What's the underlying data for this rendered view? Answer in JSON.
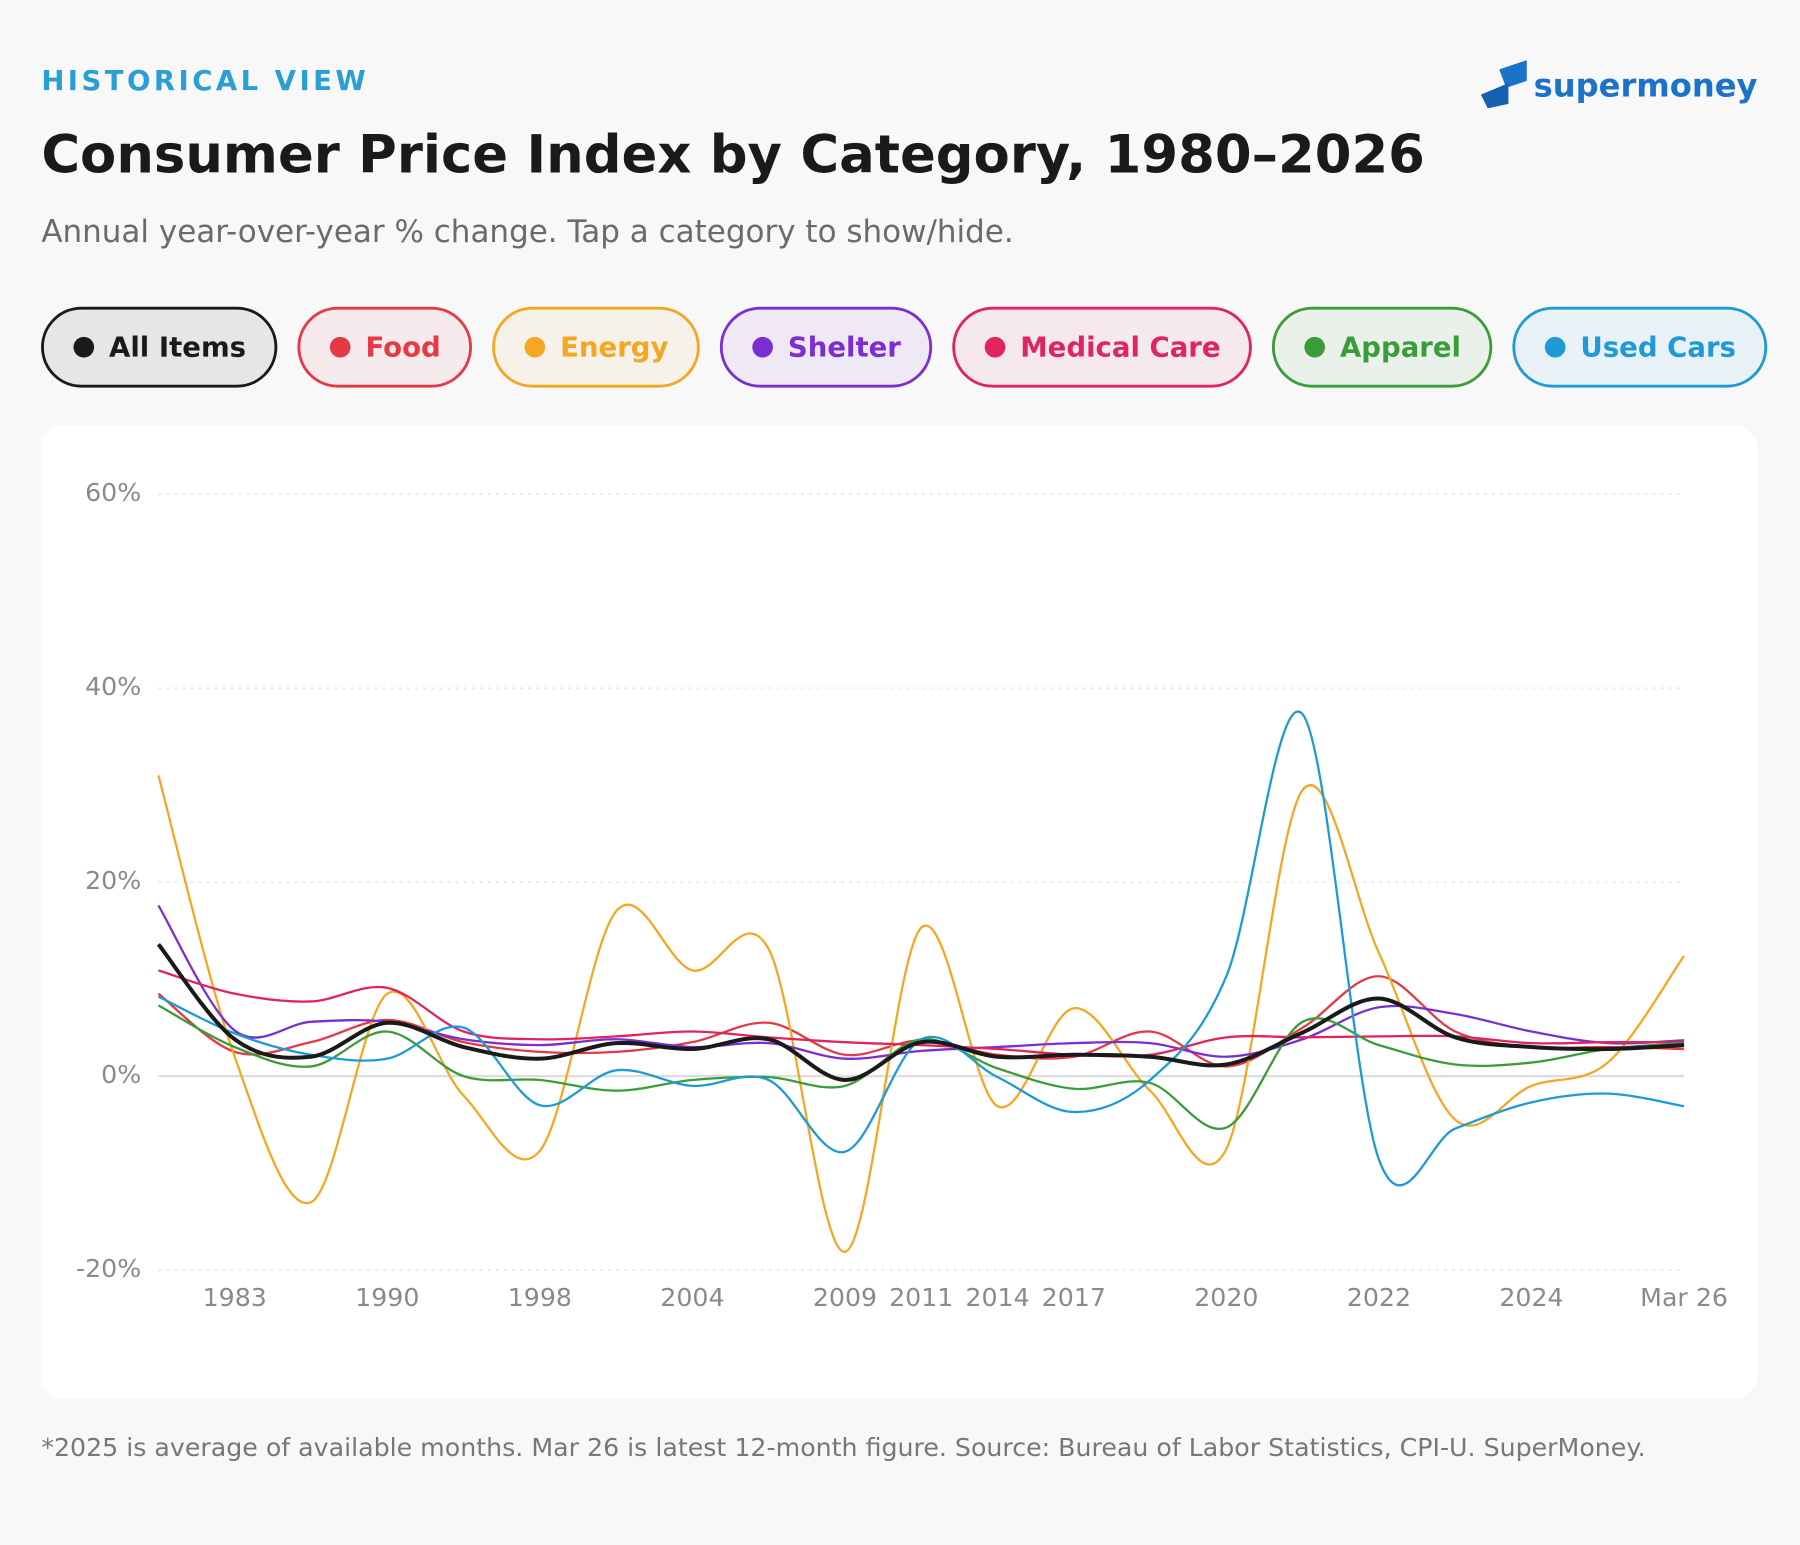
{
  "eyebrow": "HISTORICAL VIEW",
  "logo": "supermoney",
  "chart_data": {
    "type": "line",
    "title": "Consumer Price Index by Category, 1980–2026",
    "subtitle": "Annual year-over-year % change. Tap a category to show/hide.",
    "footnote": "*2025 is average of available months. Mar 26 is latest 12-month figure. Source: Bureau of Labor Statistics, CPI-U. SuperMoney.",
    "categories": [
      null,
      "1983",
      null,
      "1990",
      null,
      "1998",
      null,
      "2004",
      null,
      "2009",
      "2011",
      "2014",
      "2017",
      null,
      "2020",
      null,
      "2022",
      null,
      "2024",
      null,
      "Mar 26"
    ],
    "ylim": [
      -20,
      60
    ],
    "yticks": [
      {
        "value": -20,
        "label": "-20%"
      },
      {
        "value": 0,
        "label": "0%"
      },
      {
        "value": 20,
        "label": "20%"
      },
      {
        "value": 40,
        "label": "40%"
      },
      {
        "value": 60,
        "label": "60%"
      }
    ],
    "grid": true,
    "series": [
      {
        "name": "All Items",
        "color": "#1a1a1a",
        "values": [
          13.6,
          3.8,
          2,
          5.5,
          3,
          1.8,
          3.4,
          2.8,
          3.8,
          -0.4,
          3.5,
          2,
          2.2,
          2,
          1.2,
          4.5,
          8,
          4,
          3,
          2.8,
          3.2
        ]
      },
      {
        "name": "Food",
        "color": "#e63946",
        "values": [
          8.5,
          2.5,
          3.5,
          5.8,
          3.5,
          2.5,
          2.5,
          3.5,
          5.5,
          2.2,
          3.7,
          2.2,
          2,
          4.6,
          1,
          5,
          10.3,
          4.6,
          3,
          3,
          2.8
        ]
      },
      {
        "name": "Energy",
        "color": "#f5a623",
        "values": [
          31,
          2,
          -13,
          8.5,
          -2,
          -7.7,
          17,
          10.9,
          13.1,
          -18.1,
          15.3,
          -3.1,
          7,
          -1.5,
          -7.5,
          29.5,
          12.7,
          -4.5,
          -1,
          1.4,
          12.4
        ]
      },
      {
        "name": "Shelter",
        "color": "#7b2fd0",
        "values": [
          17.6,
          4.7,
          5.6,
          5.6,
          3.8,
          3.2,
          3.8,
          3,
          3.4,
          1.8,
          2.6,
          3,
          3.4,
          3.4,
          2,
          3.8,
          7.1,
          6.4,
          4.6,
          3.4,
          3.7
        ]
      },
      {
        "name": "Medical Care",
        "color": "#e0245e",
        "values": [
          10.9,
          8.5,
          7.7,
          9.1,
          4.6,
          3.8,
          4.1,
          4.6,
          4,
          3.5,
          3.2,
          2.8,
          2.2,
          2.2,
          4,
          4,
          4.1,
          4.1,
          3.4,
          3.5,
          3.5
        ]
      },
      {
        "name": "Apparel",
        "color": "#3a9d3a",
        "values": [
          7.3,
          3,
          1,
          4.6,
          0,
          -0.4,
          -1.5,
          -0.4,
          -0.1,
          -1,
          3.8,
          0.8,
          -1.3,
          -0.7,
          -5.3,
          5.6,
          3.2,
          1.2,
          1.4,
          2.8,
          3.4
        ]
      },
      {
        "name": "Used Cars",
        "color": "#1e9ad6",
        "values": [
          8.2,
          4.4,
          2.2,
          1.8,
          5,
          -3,
          0.6,
          -1,
          -0.4,
          -7.8,
          3.8,
          -0.1,
          -3.7,
          -0.4,
          10.3,
          37.3,
          -8.6,
          -5.4,
          -2.7,
          -1.8,
          -3.1
        ]
      }
    ]
  }
}
